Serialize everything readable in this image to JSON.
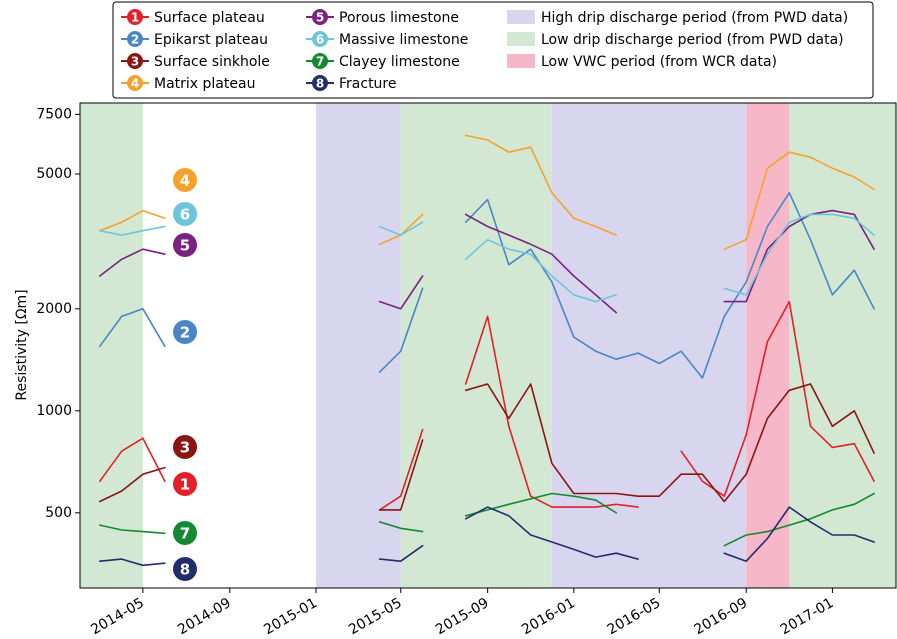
{
  "chart_data": {
    "type": "line",
    "y_label": "Resistivity [Ωm]",
    "log_scale": true,
    "grid": false,
    "xlim": [
      "2014-02",
      "2017-04"
    ],
    "xticks": [
      "2014-05",
      "2014-09",
      "2015-01",
      "2015-05",
      "2015-09",
      "2016-01",
      "2016-05",
      "2016-09",
      "2017-01"
    ],
    "ylim": [
      300,
      8100
    ],
    "yticks": [
      500,
      1000,
      2000,
      5000,
      7500
    ],
    "x": [
      "2014-03",
      "2014-04",
      "2014-05",
      "2014-06",
      "2014-07",
      "2015-04",
      "2015-05",
      "2015-06",
      "2015-07",
      "2015-08",
      "2015-09",
      "2015-10",
      "2015-11",
      "2015-12",
      "2016-01",
      "2016-02",
      "2016-03",
      "2016-04",
      "2016-05",
      "2016-06",
      "2016-07",
      "2016-08",
      "2016-09",
      "2016-10",
      "2016-11",
      "2016-12",
      "2017-01",
      "2017-02",
      "2017-03"
    ],
    "series": [
      {
        "number": 1,
        "name": "Surface plateau",
        "color": "#e3202a",
        "values": [
          620,
          760,
          830,
          620,
          null,
          510,
          560,
          880,
          null,
          1200,
          1900,
          900,
          560,
          520,
          520,
          520,
          530,
          520,
          null,
          760,
          620,
          560,
          850,
          1600,
          2100,
          900,
          780,
          800,
          620
        ]
      },
      {
        "number": 2,
        "name": "Epikarst plateau",
        "color": "#4a86c5",
        "values": [
          1550,
          1900,
          2000,
          1550,
          null,
          1300,
          1500,
          2300,
          null,
          3600,
          4200,
          2700,
          3000,
          2400,
          1650,
          1500,
          1420,
          1480,
          1380,
          1500,
          1250,
          1900,
          2400,
          3500,
          4400,
          3200,
          2200,
          2600,
          2000
        ]
      },
      {
        "number": 3,
        "name": "Surface sinkhole",
        "color": "#8b1414",
        "values": [
          540,
          580,
          650,
          680,
          null,
          510,
          510,
          820,
          null,
          1150,
          1200,
          950,
          1200,
          700,
          570,
          570,
          570,
          560,
          560,
          650,
          650,
          540,
          650,
          950,
          1150,
          1200,
          900,
          1000,
          750
        ]
      },
      {
        "number": 4,
        "name": "Matrix plateau",
        "color": "#f5a22d",
        "values": [
          3400,
          3600,
          3900,
          3700,
          null,
          3100,
          3300,
          3800,
          null,
          6500,
          6300,
          5800,
          6000,
          4400,
          3700,
          3500,
          3300,
          null,
          null,
          null,
          null,
          3000,
          3200,
          5200,
          5800,
          5600,
          5200,
          4900,
          4500
        ]
      },
      {
        "number": 5,
        "name": "Porous limestone",
        "color": "#7a2181",
        "values": [
          2500,
          2800,
          3000,
          2900,
          null,
          2100,
          2000,
          2500,
          null,
          3800,
          3500,
          3300,
          3100,
          2900,
          2500,
          2200,
          1950,
          null,
          null,
          null,
          null,
          2100,
          2100,
          3000,
          3500,
          3800,
          3900,
          3800,
          3000
        ]
      },
      {
        "number": 6,
        "name": "Massive limestone",
        "color": "#6dc5da",
        "values": [
          3400,
          3300,
          3400,
          3500,
          null,
          3500,
          3300,
          3600,
          null,
          2800,
          3200,
          3000,
          2900,
          2500,
          2200,
          2100,
          2200,
          null,
          null,
          null,
          null,
          2300,
          2200,
          2900,
          3600,
          3800,
          3800,
          3700,
          3300
        ]
      },
      {
        "number": 7,
        "name": "Clayey limestone",
        "color": "#138a32",
        "values": [
          460,
          445,
          440,
          435,
          null,
          470,
          450,
          440,
          null,
          490,
          510,
          530,
          550,
          570,
          560,
          545,
          500,
          null,
          null,
          null,
          null,
          400,
          430,
          440,
          460,
          480,
          510,
          530,
          570
        ]
      },
      {
        "number": 8,
        "name": "Fracture",
        "color": "#232d6b",
        "values": [
          360,
          365,
          350,
          355,
          null,
          365,
          360,
          400,
          null,
          480,
          520,
          490,
          430,
          410,
          390,
          370,
          380,
          365,
          null,
          null,
          null,
          380,
          360,
          420,
          520,
          470,
          430,
          430,
          410
        ]
      }
    ],
    "periods": [
      {
        "name": "High drip discharge period (from PWD data)",
        "color": "#d8d6ee",
        "spans": [
          [
            "2015-01",
            "2015-05"
          ],
          [
            "2015-12",
            "2016-09"
          ]
        ]
      },
      {
        "name": "Low drip discharge period (from PWD data)",
        "color": "#d3e8d3",
        "spans": [
          [
            "2014-02",
            "2014-05"
          ],
          [
            "2015-05",
            "2015-12"
          ],
          [
            "2016-11",
            "2017-04"
          ]
        ]
      },
      {
        "name": "Low VWC period (from WCR data)",
        "color": "#f6b8c9",
        "spans": [
          [
            "2016-09",
            "2016-11"
          ]
        ]
      }
    ]
  }
}
